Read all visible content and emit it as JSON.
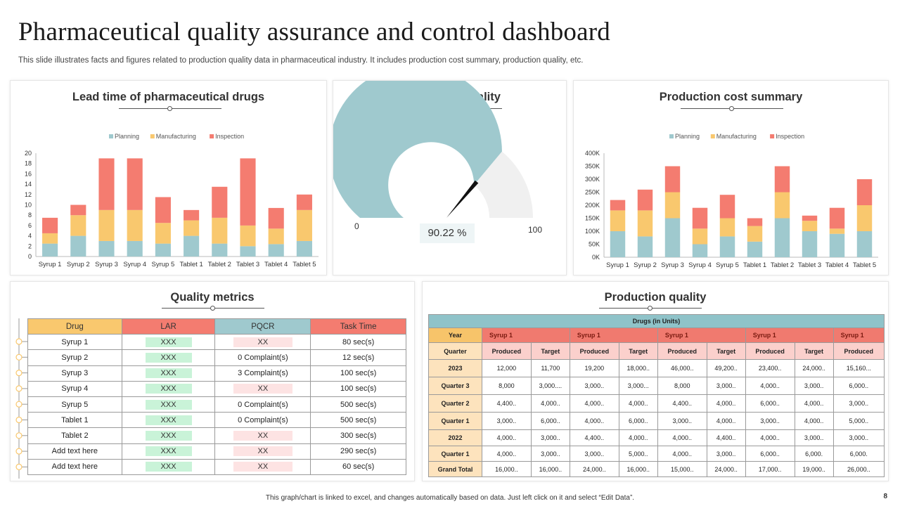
{
  "title": "Pharmaceutical quality assurance and control dashboard",
  "subtitle": "This slide illustrates facts and figures related to production quality data in pharmaceutical industry. It includes production cost summary, production quality, etc.",
  "footer": "This graph/chart is linked to excel, and changes automatically based on data. Just left click on it and select “Edit Data”.",
  "page_number": "8",
  "colors": {
    "planning": "#9fc9ce",
    "manufacturing": "#f9c86e",
    "inspection": "#f47c70",
    "gauge": "#9fc9ce",
    "gauge_rest": "#f0f0f0"
  },
  "panels": {
    "lead_time_title": "Lead time of pharmaceutical drugs",
    "gauge_title": "Production quality",
    "cost_title": "Production cost summary",
    "quality_metrics_title": "Quality metrics",
    "production_table_title": "Production quality"
  },
  "gauge": {
    "value": 90.22,
    "label": "90.22 %",
    "min_label": "0",
    "max_label": "100",
    "min": 0,
    "max": 100
  },
  "chart_data": [
    {
      "type": "bar",
      "stacked": true,
      "title": "Lead time of pharmaceutical drugs",
      "categories": [
        "Syrup 1",
        "Syrup 2",
        "Syrup 3",
        "Syrup 4",
        "Syrup 5",
        "Tablet 1",
        "Tablet 2",
        "Tablet 3",
        "Tablet 4",
        "Tablet 5"
      ],
      "series": [
        {
          "name": "Planning",
          "values": [
            2.5,
            4,
            3,
            3,
            2.5,
            4,
            2.5,
            2,
            2.4,
            3
          ]
        },
        {
          "name": "Manufacturing",
          "values": [
            2,
            4,
            6,
            6,
            4,
            3,
            5,
            4,
            3,
            6
          ]
        },
        {
          "name": "Inspection",
          "values": [
            3,
            2,
            10,
            10,
            5,
            2,
            6,
            13,
            4,
            3
          ]
        }
      ],
      "ylim": [
        0,
        20
      ],
      "yticks": [
        "0",
        "2",
        "4",
        "6",
        "8",
        "10",
        "12",
        "14",
        "16",
        "18",
        "20"
      ],
      "legend": "top"
    },
    {
      "type": "bar",
      "stacked": true,
      "title": "Production cost summary",
      "categories": [
        "Syrup 1",
        "Syrup 2",
        "Syrup 3",
        "Syrup 4",
        "Syrup 5",
        "Tablet 1",
        "Tablet 2",
        "Tablet 3",
        "Tablet 4",
        "Tablet 5"
      ],
      "series": [
        {
          "name": "Planning",
          "values": [
            100000,
            80000,
            150000,
            50000,
            80000,
            60000,
            150000,
            100000,
            90000,
            100000
          ]
        },
        {
          "name": "Manufacturing",
          "values": [
            80000,
            100000,
            100000,
            60000,
            70000,
            60000,
            100000,
            40000,
            20000,
            100000
          ]
        },
        {
          "name": "Inspection",
          "values": [
            40000,
            80000,
            100000,
            80000,
            90000,
            30000,
            100000,
            20000,
            80000,
            100000
          ]
        }
      ],
      "ylim": [
        0,
        400000
      ],
      "yticks": [
        "0K",
        "50K",
        "100K",
        "150K",
        "200K",
        "250K",
        "300K",
        "350K",
        "400K"
      ],
      "legend": "top"
    }
  ],
  "quality_metrics": {
    "headers": [
      "Drug",
      "LAR",
      "PQCR",
      "Task Time"
    ],
    "rows": [
      {
        "drug": "Syrup 1",
        "lar": "XXX",
        "pqcr": "XX",
        "pqcr_pill": true,
        "time": "80 sec(s)"
      },
      {
        "drug": "Syrup 2",
        "lar": "XXX",
        "pqcr": "0 Complaint(s)",
        "pqcr_pill": false,
        "time": "12 sec(s)"
      },
      {
        "drug": "Syrup 3",
        "lar": "XXX",
        "pqcr": "3 Complaint(s)",
        "pqcr_pill": false,
        "time": "100 sec(s)"
      },
      {
        "drug": "Syrup 4",
        "lar": "XXX",
        "pqcr": "XX",
        "pqcr_pill": true,
        "time": "100 sec(s)"
      },
      {
        "drug": "Syrup 5",
        "lar": "XXX",
        "pqcr": "0 Complaint(s)",
        "pqcr_pill": false,
        "time": "500 sec(s)"
      },
      {
        "drug": "Tablet 1",
        "lar": "XXX",
        "pqcr": "0 Complaint(s)",
        "pqcr_pill": false,
        "time": "500 sec(s)"
      },
      {
        "drug": "Tablet 2",
        "lar": "XXX",
        "pqcr": "XX",
        "pqcr_pill": true,
        "time": "300 sec(s)"
      },
      {
        "drug": "Add text here",
        "lar": "XXX",
        "pqcr": "XX",
        "pqcr_pill": true,
        "time": "290 sec(s)"
      },
      {
        "drug": "Add text here",
        "lar": "XXX",
        "pqcr": "XX",
        "pqcr_pill": true,
        "time": "60 sec(s)"
      }
    ]
  },
  "production_table": {
    "top_header": "Drugs (in Units)",
    "year_label": "Year",
    "quarter_label": "Quarter",
    "groups": [
      "Syrup 1",
      "Syrup 1",
      "Syrup 1",
      "Syrup 1",
      "Syrup 1"
    ],
    "sub_headers": [
      "Produced",
      "Target",
      "Produced",
      "Target",
      "Produced",
      "Target",
      "Produced",
      "Target",
      "Produced"
    ],
    "rows": [
      {
        "label": "2023",
        "cells": [
          "12,000",
          "11,700",
          "19,200",
          "18,000..",
          "46,000..",
          "49,200..",
          "23,400..",
          "24,000..",
          "15,160..."
        ]
      },
      {
        "label": "Quarter 3",
        "cells": [
          "8,000",
          "3,000....",
          "3,000..",
          "3,000...",
          "8,000",
          "3,000..",
          "4,000..",
          "3,000..",
          "6,000.."
        ]
      },
      {
        "label": "Quarter 2",
        "cells": [
          "4,400..",
          "4,000..",
          "4,000..",
          "4,000..",
          "4,400..",
          "4,000..",
          "6,000..",
          "4,000..",
          "3,000.."
        ]
      },
      {
        "label": "Quarter 1",
        "cells": [
          "3,000..",
          "6,000..",
          "4,000..",
          "6,000..",
          "3,000..",
          "4,000..",
          "3,000..",
          "4,000..",
          "5,000.."
        ]
      },
      {
        "label": "2022",
        "cells": [
          "4,000..",
          "3,000..",
          "4,400..",
          "4,000..",
          "4,000..",
          "4,400..",
          "4,000..",
          "3,000..",
          "3,000.."
        ]
      },
      {
        "label": "Quarter 1",
        "cells": [
          "4,000..",
          "3,000..",
          "3,000..",
          "5,000..",
          "4,000..",
          "3,000..",
          "6,000..",
          "6,000.",
          "6,000."
        ]
      },
      {
        "label": "Grand Total",
        "cells": [
          "16,000..",
          "16,000..",
          "24,000..",
          "16,000..",
          "15,000..",
          "24,000..",
          "17,000..",
          "19,000..",
          "26,000.."
        ]
      }
    ]
  }
}
